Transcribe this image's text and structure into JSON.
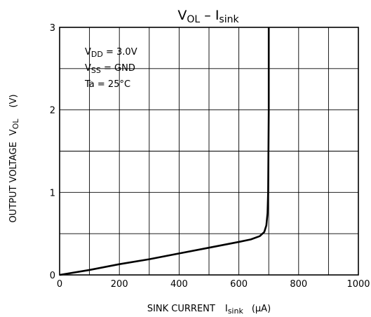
{
  "chart_data": {
    "type": "line",
    "title": {
      "main": "V",
      "main_sub": "OL",
      "sep": " – ",
      "main2": "I",
      "main2_sub": "sink"
    },
    "xlabel": {
      "text": "SINK CURRENT",
      "sym": "I",
      "sub": "sink",
      "unit": "(µA)"
    },
    "ylabel": {
      "text": "OUTPUT VOLTAGE",
      "sym": "V",
      "sub": "OL",
      "unit": "(V)"
    },
    "xlim": [
      0,
      1000
    ],
    "ylim": [
      0,
      3
    ],
    "xticks": [
      "0",
      "200",
      "400",
      "600",
      "800",
      "1000"
    ],
    "yticks": [
      "0",
      "1",
      "2",
      "3"
    ],
    "grid": true,
    "conditions": [
      {
        "sym": "V",
        "sub": "DD",
        "rest": " = 3.0V"
      },
      {
        "sym": "V",
        "sub": "SS",
        "rest": " = GND"
      },
      {
        "sym": "Ta",
        "sub": "",
        "rest": " = 25°C"
      }
    ],
    "series": [
      {
        "x": [
          0,
          100,
          200,
          300,
          400,
          500,
          600,
          640,
          670,
          685,
          692,
          696,
          698,
          700,
          700
        ],
        "y": [
          0,
          0.06,
          0.13,
          0.19,
          0.26,
          0.33,
          0.4,
          0.43,
          0.47,
          0.52,
          0.6,
          0.75,
          1.0,
          2.0,
          3.0
        ]
      }
    ]
  }
}
